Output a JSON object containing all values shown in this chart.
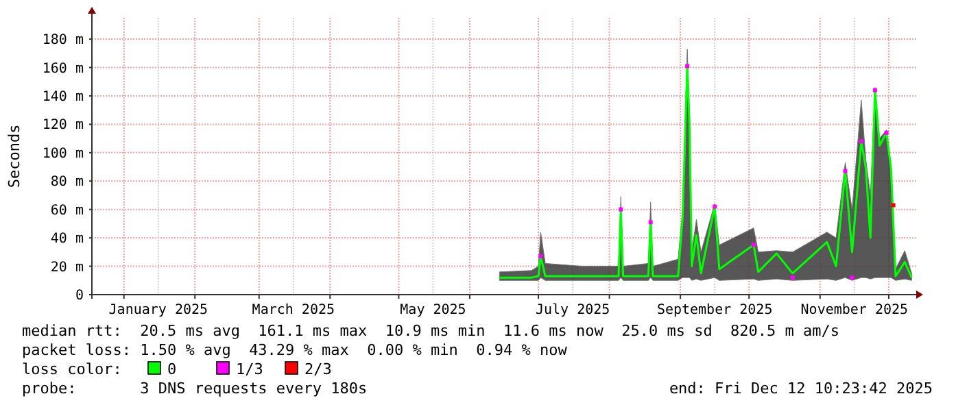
{
  "chart_data": {
    "type": "line",
    "ylabel": "Seconds",
    "legend_title": "loss color:",
    "legend": "bottom",
    "grid": true,
    "xlim": [
      "2024-12-18",
      "2025-12-13"
    ],
    "xticks": [
      {
        "value": "2025-01-01",
        "label": null
      },
      {
        "value": "2025-01-16",
        "label": "January 2025"
      },
      {
        "value": "2025-02-01",
        "label": null
      },
      {
        "value": "2025-03-01",
        "label": null
      },
      {
        "value": "2025-03-16",
        "label": "March 2025"
      },
      {
        "value": "2025-04-01",
        "label": null
      },
      {
        "value": "2025-05-01",
        "label": null
      },
      {
        "value": "2025-05-16",
        "label": "May 2025"
      },
      {
        "value": "2025-06-01",
        "label": null
      },
      {
        "value": "2025-07-01",
        "label": null
      },
      {
        "value": "2025-07-16",
        "label": "July 2025"
      },
      {
        "value": "2025-08-01",
        "label": null
      },
      {
        "value": "2025-09-01",
        "label": null
      },
      {
        "value": "2025-09-16",
        "label": "September 2025"
      },
      {
        "value": "2025-10-01",
        "label": null
      },
      {
        "value": "2025-11-01",
        "label": null
      },
      {
        "value": "2025-11-16",
        "label": "November 2025"
      },
      {
        "value": "2025-12-01",
        "label": null
      }
    ],
    "ylim": [
      0,
      195
    ],
    "yticks": [
      0,
      {
        "value": 20,
        "label": "20 m"
      },
      {
        "value": 40,
        "label": "40 m"
      },
      {
        "value": 60,
        "label": "60 m"
      },
      {
        "value": 80,
        "label": "80 m"
      },
      {
        "value": 100,
        "label": "100 m"
      },
      {
        "value": 120,
        "label": "120 m"
      },
      {
        "value": 140,
        "label": "140 m"
      },
      {
        "value": 160,
        "label": "160 m"
      },
      {
        "value": 180,
        "label": "180 m"
      }
    ],
    "series": [
      {
        "name": "0",
        "color": "#00ff00",
        "marker": "none",
        "x": [
          "2025-06-14",
          "2025-06-28",
          "2025-07-01",
          "2025-07-02",
          "2025-07-04",
          "2025-07-20",
          "2025-08-05",
          "2025-08-06",
          "2025-08-07",
          "2025-08-18",
          "2025-08-19",
          "2025-08-20",
          "2025-08-31",
          "2025-09-02",
          "2025-09-04",
          "2025-09-05",
          "2025-09-06",
          "2025-09-08",
          "2025-09-10",
          "2025-09-16",
          "2025-09-18",
          "2025-10-03",
          "2025-10-05",
          "2025-10-13",
          "2025-10-20",
          "2025-11-04",
          "2025-11-08",
          "2025-11-12",
          "2025-11-15",
          "2025-11-19",
          "2025-11-21",
          "2025-11-23",
          "2025-11-25",
          "2025-11-27",
          "2025-11-30",
          "2025-12-02",
          "2025-12-04",
          "2025-12-08",
          "2025-12-11"
        ],
        "values": [
          12,
          12,
          13,
          27,
          13,
          13,
          13,
          60,
          13,
          13,
          51,
          13,
          13,
          55,
          161,
          120,
          20,
          42,
          15,
          62,
          18,
          35,
          16,
          29,
          15,
          37,
          20,
          87,
          30,
          108,
          89,
          40,
          144,
          105,
          114,
          89,
          13,
          23,
          12
        ],
        "lower": [
          10,
          10,
          10,
          12,
          10,
          10,
          10,
          12,
          10,
          10,
          12,
          10,
          10,
          12,
          12,
          12,
          10,
          11,
          10,
          12,
          10,
          11,
          10,
          11,
          10,
          11,
          10,
          12,
          10,
          12,
          12,
          11,
          12,
          12,
          12,
          12,
          10,
          11,
          10
        ],
        "upper": [
          16,
          17,
          20,
          44,
          22,
          20,
          20,
          69,
          20,
          22,
          65,
          20,
          25,
          60,
          173,
          125,
          30,
          53,
          30,
          64,
          35,
          47,
          30,
          31,
          30,
          44,
          40,
          93,
          60,
          137,
          95,
          70,
          146,
          110,
          116,
          91,
          18,
          31,
          15
        ]
      },
      {
        "name": "1/3",
        "type": "scatter",
        "color": "#ff00ff",
        "marker": "square",
        "x": [
          "2025-07-02",
          "2025-08-06",
          "2025-08-19",
          "2025-09-04",
          "2025-09-16",
          "2025-10-03",
          "2025-10-20",
          "2025-11-12",
          "2025-11-15",
          "2025-11-19",
          "2025-11-25",
          "2025-11-30"
        ],
        "values": [
          27,
          60,
          51,
          161,
          62,
          35,
          12,
          87,
          12,
          108,
          144,
          114
        ]
      },
      {
        "name": "2/3",
        "type": "scatter",
        "color": "#ff0000",
        "marker": "square",
        "x": [
          "2025-12-03"
        ],
        "values": [
          63
        ]
      }
    ],
    "annotations": [
      "median rtt:  20.5 ms avg  161.1 ms max  10.9 ms min  11.6 ms now  25.0 ms sd  820.5 m am/s",
      "packet loss: 1.50 % avg  43.29 % max  0.00 % min  0.94 % now",
      "probe:       3 DNS requests every 180s",
      "end: Fri Dec 12 10:23:42 2025"
    ]
  }
}
